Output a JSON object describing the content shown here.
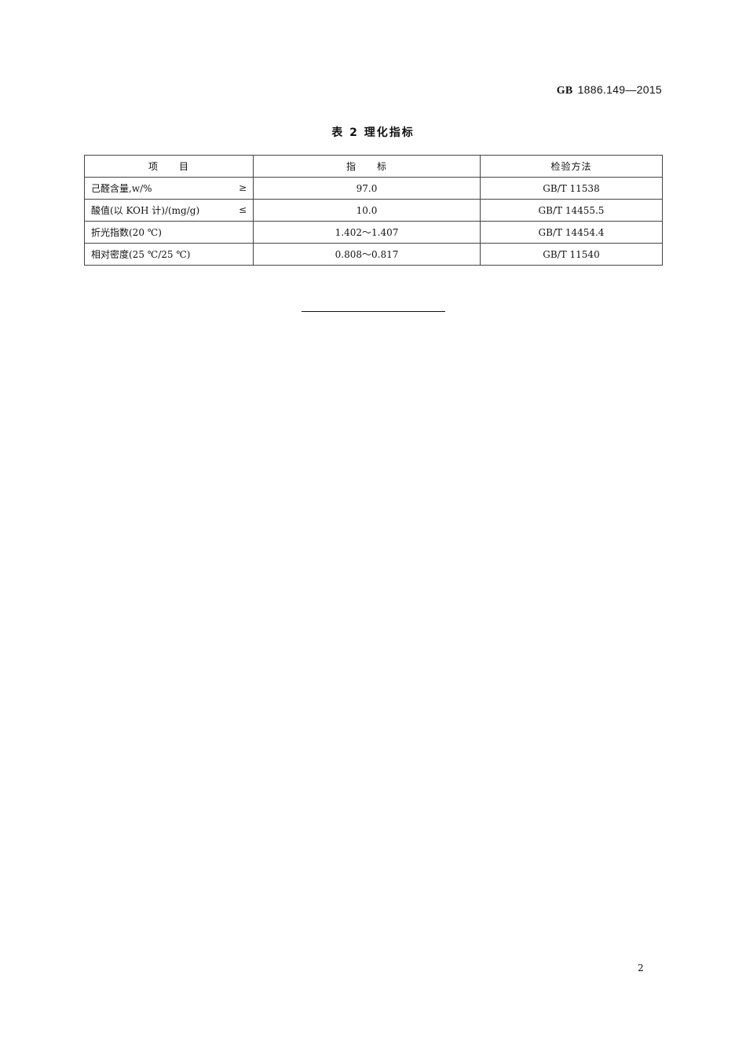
{
  "header": {
    "standard_prefix": "GB",
    "standard_number": "1886.149—2015"
  },
  "table": {
    "caption": "表 2   理化指标",
    "columns": [
      "项　　目",
      "指　　标",
      "检验方法"
    ],
    "rows": [
      {
        "item": "己醛含量,w/%",
        "operator": "≥",
        "value": "97.0",
        "method": "GB/T 11538"
      },
      {
        "item": "酸值(以 KOH 计)/(mg/g)",
        "operator": "≤",
        "value": "10.0",
        "method": "GB/T 14455.5"
      },
      {
        "item": "折光指数(20 ℃)",
        "operator": "",
        "value": "1.402～1.407",
        "method": "GB/T 14454.4"
      },
      {
        "item": "相对密度(25 ℃/25 ℃)",
        "operator": "",
        "value": "0.808～0.817",
        "method": "GB/T 11540"
      }
    ]
  },
  "footer": {
    "page_number": "2"
  }
}
